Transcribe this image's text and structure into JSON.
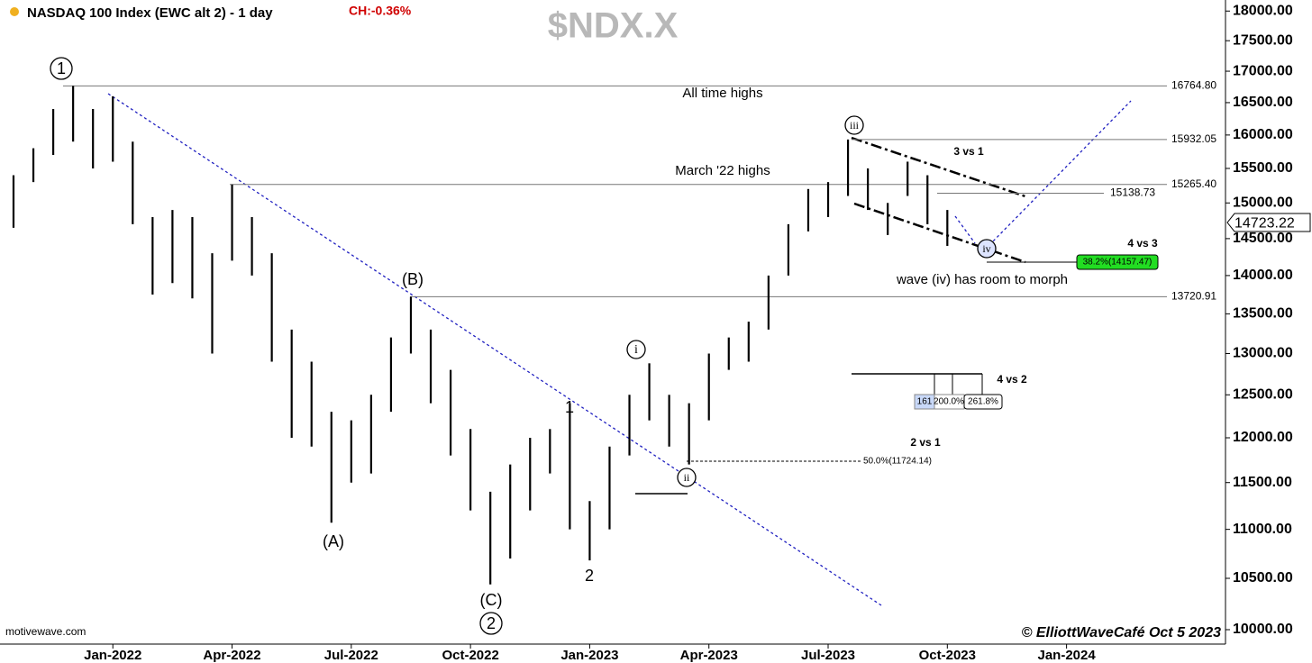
{
  "chart_data": {
    "type": "ohlc",
    "title": "NASDAQ 100 Index (EWC alt 2) - 1 day",
    "change": "CH:-0.36%",
    "symbol": "$NDX.X",
    "source": "motivewave.com",
    "credit": "© ElliottWaveCafé Oct 5 2023",
    "color": "#000000",
    "log_scale": true,
    "last_price": {
      "value": 14723.22,
      "label": "14723.22"
    },
    "x": [
      -2.5,
      -2.0,
      -1.5,
      -1.0,
      -0.5,
      0.0,
      0.5,
      1.0,
      1.5,
      2.0,
      2.5,
      3.0,
      3.5,
      4.0,
      4.5,
      5.0,
      5.5,
      6.0,
      6.5,
      7.0,
      7.5,
      8.0,
      8.5,
      9.0,
      9.5,
      10.0,
      10.5,
      11.0,
      11.5,
      12.0,
      12.5,
      13.0,
      13.5,
      14.0,
      14.5,
      15.0,
      15.5,
      16.0,
      16.5,
      17.0,
      17.5,
      18.0,
      18.5,
      19.0,
      19.5,
      20.0,
      20.5,
      21.0
    ],
    "high": [
      15400,
      15800,
      16400,
      16764,
      16400,
      16600,
      15900,
      14800,
      14900,
      14800,
      14300,
      15265,
      14800,
      14300,
      13300,
      12900,
      12300,
      12200,
      12500,
      13200,
      13720,
      13300,
      12800,
      12100,
      11400,
      11700,
      12000,
      12100,
      12400,
      11300,
      11900,
      12500,
      12880,
      12500,
      12400,
      13000,
      13200,
      13400,
      14000,
      14700,
      15200,
      15300,
      15932,
      15500,
      15000,
      15600,
      15400,
      14900
    ],
    "low": [
      14650,
      15300,
      15700,
      15900,
      15500,
      15600,
      14700,
      13750,
      13900,
      13700,
      13000,
      14200,
      14000,
      12900,
      12000,
      11900,
      11070,
      11500,
      11600,
      12300,
      13000,
      12400,
      11800,
      11200,
      10440,
      10700,
      11200,
      11600,
      11000,
      10680,
      11000,
      11800,
      12200,
      11900,
      11700,
      12200,
      12800,
      12900,
      13300,
      14000,
      14600,
      14800,
      15100,
      14900,
      14550,
      15100,
      14700,
      14400
    ],
    "xlim": [
      -2.84,
      28.0
    ],
    "ylim": [
      9864,
      18190
    ],
    "xticks": [
      {
        "value": 0,
        "label": "Jan-2022"
      },
      {
        "value": 3,
        "label": "Apr-2022"
      },
      {
        "value": 6,
        "label": "Jul-2022"
      },
      {
        "value": 9,
        "label": "Oct-2022"
      },
      {
        "value": 12,
        "label": "Jan-2023"
      },
      {
        "value": 15,
        "label": "Apr-2023"
      },
      {
        "value": 18,
        "label": "Jul-2023"
      },
      {
        "value": 21,
        "label": "Oct-2023"
      },
      {
        "value": 24,
        "label": "Jan-2024"
      }
    ],
    "yticks": [
      {
        "value": 10000,
        "label": "10000.00"
      },
      {
        "value": 10500,
        "label": "10500.00"
      },
      {
        "value": 11000,
        "label": "11000.00"
      },
      {
        "value": 11500,
        "label": "11500.00"
      },
      {
        "value": 12000,
        "label": "12000.00"
      },
      {
        "value": 12500,
        "label": "12500.00"
      },
      {
        "value": 13000,
        "label": "13000.00"
      },
      {
        "value": 13500,
        "label": "13500.00"
      },
      {
        "value": 14000,
        "label": "14000.00"
      },
      {
        "value": 14500,
        "label": "14500.00"
      },
      {
        "value": 15000,
        "label": "15000.00"
      },
      {
        "value": 15500,
        "label": "15500.00"
      },
      {
        "value": 16000,
        "label": "16000.00"
      },
      {
        "value": 16500,
        "label": "16500.00"
      },
      {
        "value": 17000,
        "label": "17000.00"
      },
      {
        "value": 17500,
        "label": "17500.00"
      },
      {
        "value": 18000,
        "label": "18000.00"
      }
    ],
    "levels": [
      {
        "value": 16764.8,
        "label": "16764.80"
      },
      {
        "value": 15932.05,
        "label": "15932.05"
      },
      {
        "value": 15265.4,
        "label": "15265.40"
      },
      {
        "value": 13720.91,
        "label": "13720.91"
      },
      {
        "value": 15138.73,
        "label": "15138.73"
      }
    ],
    "annotations": [
      "All time highs",
      "March '22 highs",
      "wave (iv) has room to morph",
      "3 vs 1",
      "4 vs 3",
      "4 vs 2",
      "2 vs 1"
    ],
    "wave_labels": [
      "1",
      "(B)",
      "(A)",
      "(C)",
      "2",
      "1",
      "2",
      "i",
      "ii",
      "iii",
      "iv"
    ],
    "fib_labels": [
      "38.2%(14157.47)",
      "50.0%(11724.14)",
      "161",
      "200.0%",
      "261.8%"
    ]
  }
}
